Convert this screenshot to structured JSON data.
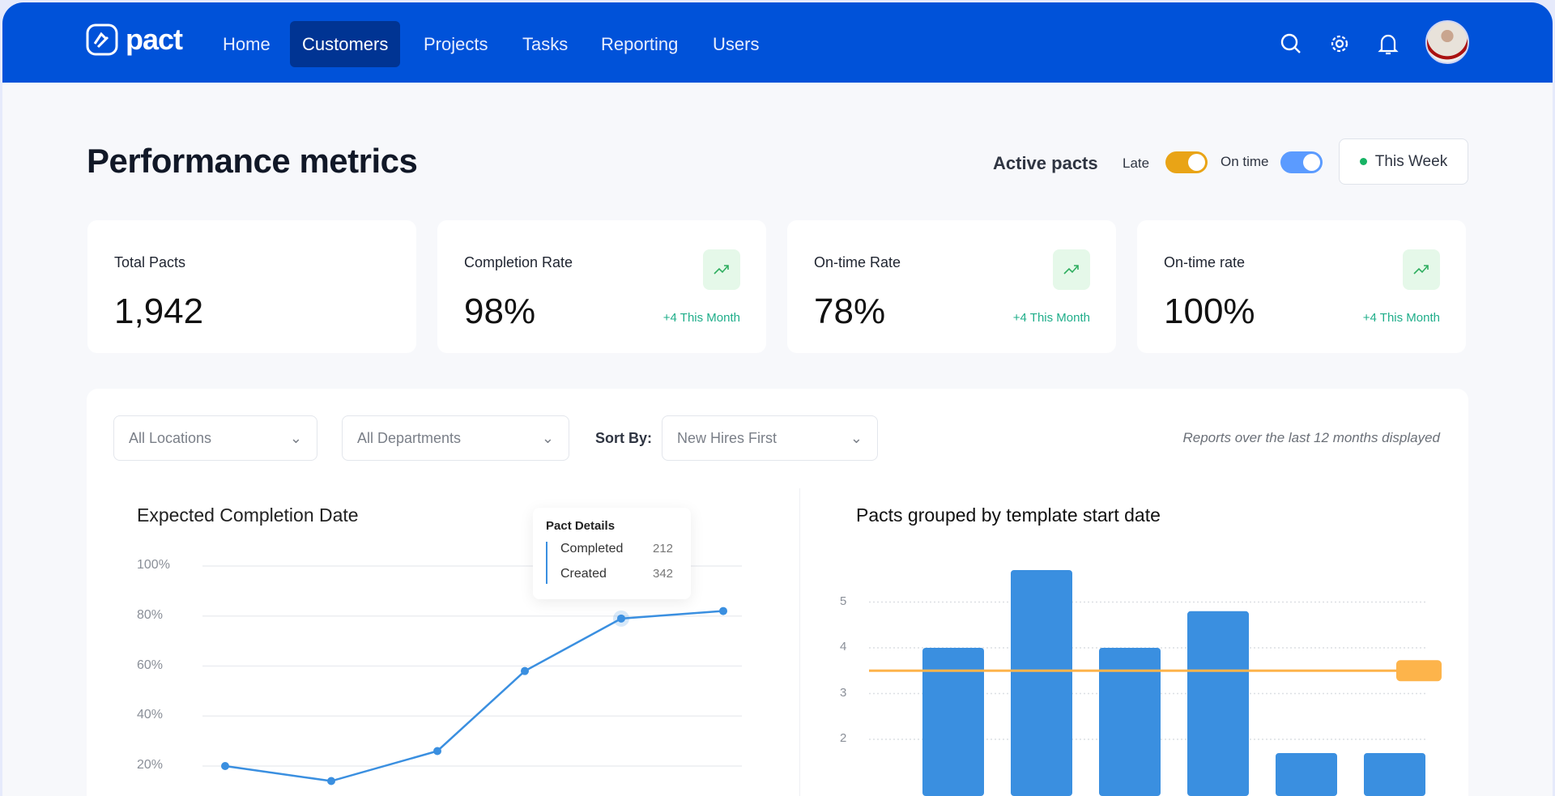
{
  "nav": {
    "logo": "pact",
    "items": [
      {
        "label": "Home",
        "active": false
      },
      {
        "label": "Customers",
        "active": true
      },
      {
        "label": "Projects",
        "active": false
      },
      {
        "label": "Tasks",
        "active": false
      },
      {
        "label": "Reporting",
        "active": false
      },
      {
        "label": "Users",
        "active": false
      }
    ],
    "icons": [
      "search-icon",
      "gear-icon",
      "bell-icon",
      "avatar"
    ]
  },
  "header": {
    "title": "Performance metrics",
    "active_label": "Active pacts",
    "late_label": "Late",
    "late_on": true,
    "ontime_label": "On time",
    "ontime_on": true,
    "period_button": "This Week"
  },
  "colors": {
    "brand": "#0052d9",
    "late": "#e9a416",
    "ontime": "#5b9bff",
    "positive": "#1fae8a",
    "bar": "#3a8fe0",
    "threshold": "#fdb44b"
  },
  "cards": [
    {
      "title": "Total Pacts",
      "value": "1,942"
    },
    {
      "title": "Completion Rate",
      "value": "98%",
      "delta": "+4 This Month",
      "icon": "trending-up-icon"
    },
    {
      "title": "On-time Rate",
      "value": "78%",
      "delta": "+4 This Month",
      "icon": "trending-up-icon"
    },
    {
      "title": "On-time rate",
      "value": "100%",
      "delta": "+4 This Month",
      "icon": "trending-up-icon"
    }
  ],
  "filters": {
    "location": "All Locations",
    "department": "All Departments",
    "sort_label": "Sort By:",
    "sort": "New Hires First",
    "note": "Reports over the last 12 months displayed"
  },
  "tooltip": {
    "title": "Pact Details",
    "rows": [
      {
        "label": "Completed",
        "value": "212"
      },
      {
        "label": "Created",
        "value": "342"
      }
    ]
  },
  "chart_data": [
    {
      "type": "line",
      "title": "Expected Completion Date",
      "yticks": [
        "100%",
        "80%",
        "60%",
        "40%",
        "20%"
      ],
      "ylim": [
        0,
        100
      ],
      "values": [
        20,
        14,
        26,
        58,
        79,
        82
      ],
      "highlight_index": 4,
      "grid": true
    },
    {
      "type": "bar",
      "title": "Pacts grouped by template start date",
      "yticks": [
        "5",
        "4",
        "3",
        "2"
      ],
      "values": [
        4,
        5.7,
        4,
        4.8,
        1.7,
        1.7
      ],
      "threshold": 3.5,
      "grid": true
    }
  ]
}
